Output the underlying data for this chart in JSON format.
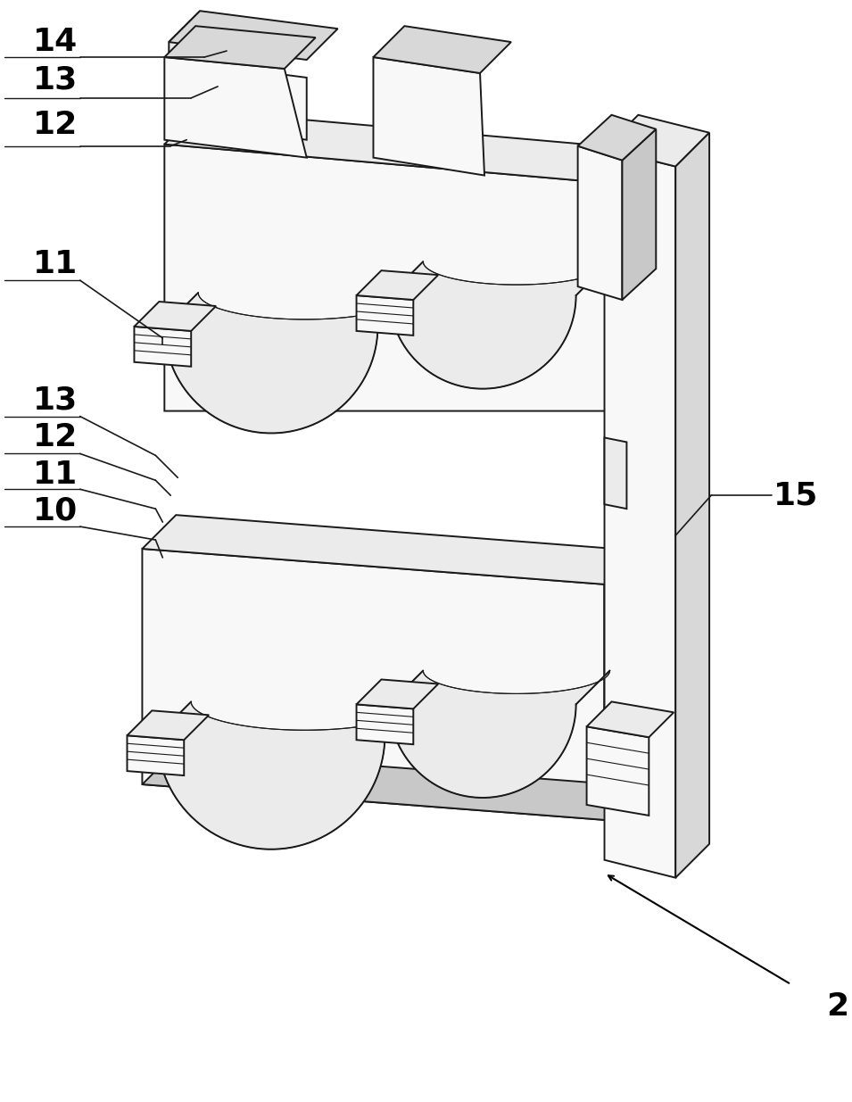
{
  "bg_color": "#ffffff",
  "line_color": "#1a1a1a",
  "lw": 1.4,
  "lw_thin": 0.8,
  "fs_label": 26,
  "face_light": "#f8f8f8",
  "face_mid": "#ebebeb",
  "face_dark": "#d8d8d8",
  "face_darker": "#c8c8c8",
  "figsize": [
    9.55,
    12.35
  ],
  "dpi": 100
}
